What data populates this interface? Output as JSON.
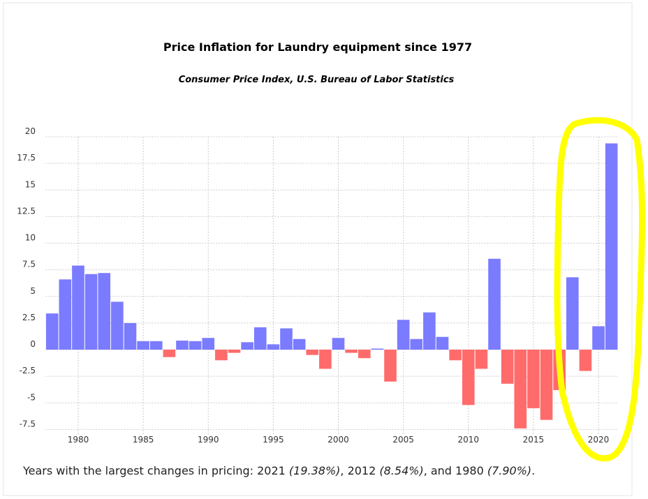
{
  "chart_data": {
    "type": "bar",
    "title": "Price Inflation for Laundry equipment since 1977",
    "subtitle": "Consumer Price Index, U.S. Bureau of Labor Statistics",
    "x": [
      1978,
      1979,
      1980,
      1981,
      1982,
      1983,
      1984,
      1985,
      1986,
      1987,
      1988,
      1989,
      1990,
      1991,
      1992,
      1993,
      1994,
      1995,
      1996,
      1997,
      1998,
      1999,
      2000,
      2001,
      2002,
      2003,
      2004,
      2005,
      2006,
      2007,
      2008,
      2009,
      2010,
      2011,
      2012,
      2013,
      2014,
      2015,
      2016,
      2017,
      2018,
      2019,
      2020,
      2021
    ],
    "values": [
      3.4,
      6.6,
      7.9,
      7.1,
      7.2,
      4.5,
      2.5,
      0.8,
      0.8,
      -0.7,
      0.85,
      0.8,
      1.1,
      -1.0,
      -0.3,
      0.7,
      2.1,
      0.5,
      2.0,
      1.0,
      -0.5,
      -1.8,
      1.1,
      -0.3,
      -0.8,
      0.1,
      -3.0,
      2.8,
      1.0,
      3.5,
      1.2,
      -1.0,
      -5.2,
      -1.8,
      8.54,
      -3.2,
      -7.4,
      -5.5,
      -6.6,
      -3.8,
      6.8,
      -2.0,
      2.2,
      19.38
    ],
    "positive_color": "#7b7bff",
    "negative_color": "#ff6b6b",
    "xlim": [
      1977.5,
      2021.5
    ],
    "xticks": [
      1980,
      1985,
      1990,
      1995,
      2000,
      2005,
      2010,
      2015,
      2020
    ],
    "ylim": [
      -8,
      20
    ],
    "yticks": [
      20,
      17.5,
      15,
      12.5,
      10,
      7.5,
      5,
      2.5,
      0,
      -2.5,
      -5,
      -7.5
    ],
    "grid": true
  },
  "footnote": [
    "Years with the largest changes in pricing: 2021 ",
    "(19.38%)",
    ", 2012 ",
    "(8.54%)",
    ", and 1980 ",
    "(7.90%)",
    "."
  ]
}
